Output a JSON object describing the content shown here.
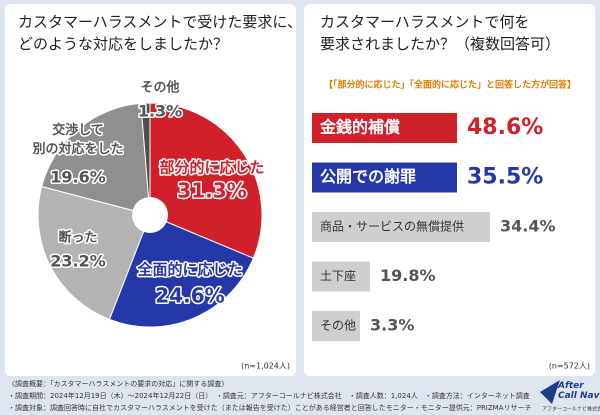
{
  "chart_data": [
    {
      "type": "pie",
      "title": "カスタマーハラスメントで受けた要求に、\nどのような対応をしましたか？",
      "categories": [
        "部分的に応じた",
        "全面的に応じた",
        "断った",
        "交渉して\n別の対応をした",
        "その他"
      ],
      "values": [
        31.3,
        24.6,
        23.2,
        19.6,
        1.3
      ],
      "value_labels": [
        "31.3%",
        "24.6%",
        "23.2%",
        "19.6%",
        "1.3%"
      ],
      "colors": [
        "#d0202a",
        "#2438a8",
        "#b3b3b3",
        "#8f8f8f",
        "#4d4d4d"
      ],
      "note": "(n=1,024人)"
    },
    {
      "type": "label-bars",
      "title": "カスタマーハラスメントで何を\n要求されましたか？（複数回答可）",
      "subtitle": "【「部分的に応じた」「全面的に応じた」と回答した方が回答】",
      "categories": [
        "金銭的補償",
        "公開での謝罪",
        "商品・サービスの無償提供",
        "土下座",
        "その他"
      ],
      "values": [
        48.6,
        35.5,
        34.4,
        19.8,
        3.3
      ],
      "value_labels": [
        "48.6%",
        "35.5%",
        "34.4%",
        "19.8%",
        "3.3%"
      ],
      "colors": [
        "#d0202a",
        "#2438a8",
        "#cfcfcf",
        "#cfcfcf",
        "#cfcfcf"
      ],
      "note": "(n=572人)"
    }
  ],
  "footer": {
    "lines": [
      "〈調査概要：「カスタマーハラスメントの要求の対応」に関する調査〉",
      "・調査期間：2024年12月19日（木）～2024年12月22日（日）　・調査元：アフターコールナビ株式会社　・調査人数：1,024人　・調査方法：インターネット調査",
      "・調査対象：調査回答時に自社でカスタマーハラスメントを受けた（または報告を受けた）ことがある経営者と回答したモニター・モニター提供元：PRIZMAリサーチ"
    ]
  },
  "logo": {
    "name": "After\nCall Navi",
    "company": "アフターコールナビ株式会社"
  }
}
